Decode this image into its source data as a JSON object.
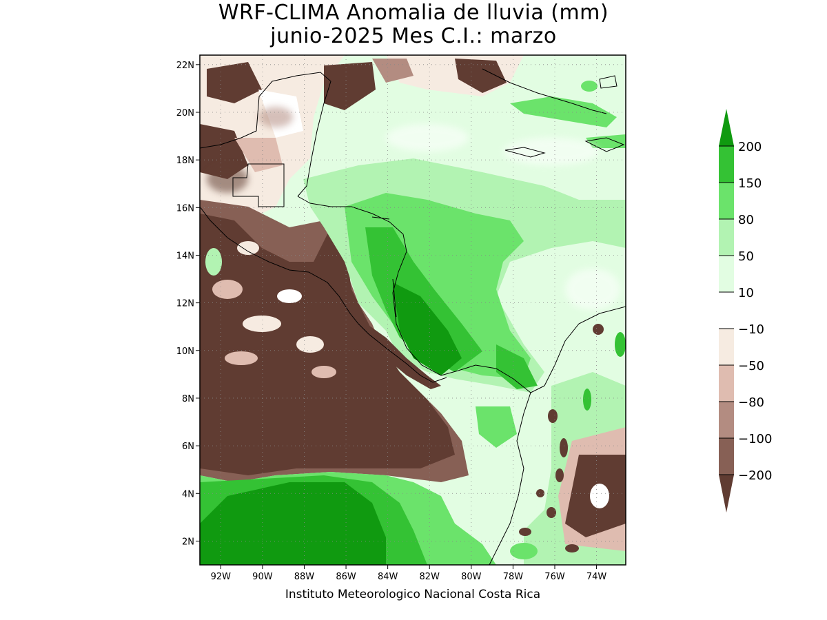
{
  "title_line1": "WRF-CLIMA Anomalia de lluvia (mm)",
  "title_line2": "junio-2025 Mes C.I.: marzo",
  "credit": "Instituto Meteorologico Nacional Costa Rica",
  "lon_ticks": [
    {
      "value": -92,
      "label": "92W"
    },
    {
      "value": -90,
      "label": "90W"
    },
    {
      "value": -88,
      "label": "88W"
    },
    {
      "value": -86,
      "label": "86W"
    },
    {
      "value": -84,
      "label": "84W"
    },
    {
      "value": -82,
      "label": "82W"
    },
    {
      "value": -80,
      "label": "80W"
    },
    {
      "value": -78,
      "label": "78W"
    },
    {
      "value": -76,
      "label": "76W"
    },
    {
      "value": -74,
      "label": "74W"
    }
  ],
  "lat_ticks": [
    {
      "value": 2,
      "label": "2N"
    },
    {
      "value": 4,
      "label": "4N"
    },
    {
      "value": 6,
      "label": "6N"
    },
    {
      "value": 8,
      "label": "8N"
    },
    {
      "value": 10,
      "label": "10N"
    },
    {
      "value": 12,
      "label": "12N"
    },
    {
      "value": 14,
      "label": "14N"
    },
    {
      "value": 16,
      "label": "16N"
    },
    {
      "value": 18,
      "label": "18N"
    },
    {
      "value": 20,
      "label": "20N"
    },
    {
      "value": 22,
      "label": "22N"
    }
  ],
  "extent": {
    "lon_min": -93.0,
    "lon_max": -72.6,
    "lat_min": 1.0,
    "lat_max": 22.4
  },
  "colorbar": {
    "labels": [
      "200",
      "150",
      "80",
      "50",
      "10",
      "-10",
      "-50",
      "-80",
      "-100",
      "-200"
    ],
    "colors_top_to_bottom": [
      "#109a10",
      "#34c234",
      "#6be36b",
      "#b2f3b2",
      "#e2fde2",
      "#ffffff",
      "#f6ebe1",
      "#dfbcb0",
      "#b38c81",
      "#876055",
      "#603c32"
    ]
  }
}
